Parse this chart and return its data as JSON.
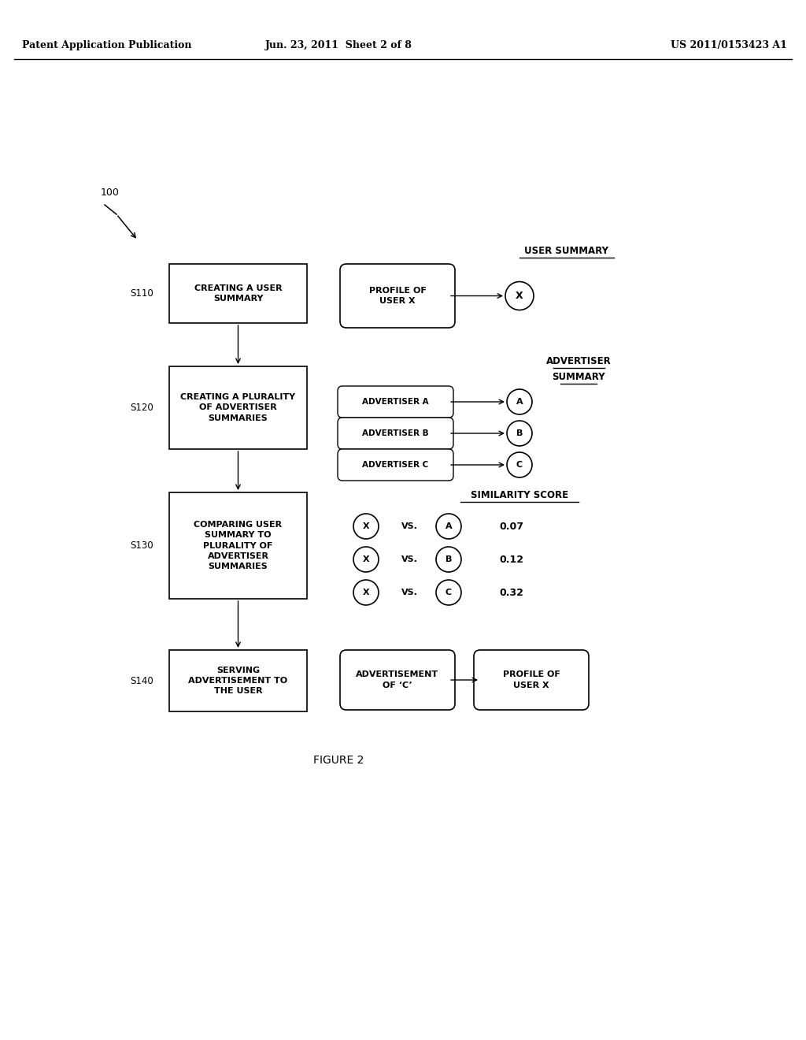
{
  "bg_color": "#ffffff",
  "header_left": "Patent Application Publication",
  "header_mid": "Jun. 23, 2011  Sheet 2 of 8",
  "header_right": "US 2011/0153423 A1",
  "figure_label": "FIGURE 2",
  "ref_number": "100",
  "steps": [
    {
      "id": "S110",
      "label": "CREATING A USER\nSUMMARY"
    },
    {
      "id": "S120",
      "label": "CREATING A PLURALITY\nOF ADVERTISER\nSUMMARIES"
    },
    {
      "id": "S130",
      "label": "COMPARING USER\nSUMMARY TO\nPLURALITY OF\nADVERTISER\nSUMMARIES"
    },
    {
      "id": "S140",
      "label": "SERVING\nADVERTISEMENT TO\nTHE USER"
    }
  ],
  "user_summary_label": "USER SUMMARY",
  "advertiser_summary_lines": [
    "ADVERTISER",
    "SUMMARY"
  ],
  "similarity_score_label": "SIMILARITY SCORE",
  "s110_right_box": "PROFILE OF\nUSER X",
  "s110_circle": "X",
  "advertisers": [
    "ADVERTISER A",
    "ADVERTISER B",
    "ADVERTISER C"
  ],
  "advertiser_circles": [
    "A",
    "B",
    "C"
  ],
  "comparisons": [
    {
      "left": "X",
      "vs": "VS.",
      "right": "A",
      "score": "0.07"
    },
    {
      "left": "X",
      "vs": "VS.",
      "right": "B",
      "score": "0.12"
    },
    {
      "left": "X",
      "vs": "VS.",
      "right": "C",
      "score": "0.32"
    }
  ],
  "s140_mid_box": "ADVERTISEMENT\nOF ‘C’",
  "s140_right_box": "PROFILE OF\nUSER X"
}
